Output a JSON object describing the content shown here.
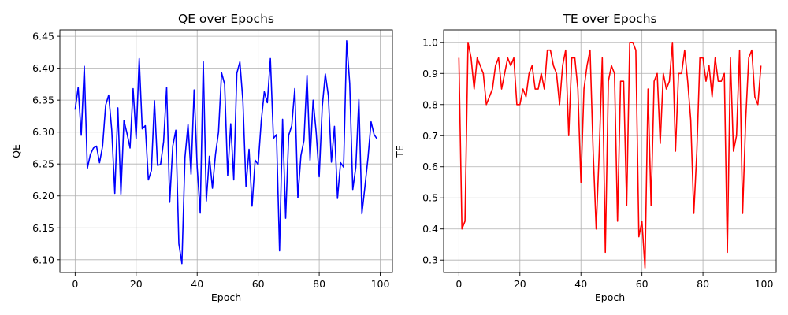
{
  "chart_data": [
    {
      "type": "line",
      "title": "QE over Epochs",
      "xlabel": "Epoch",
      "ylabel": "QE",
      "xlim": [
        -5,
        104
      ],
      "ylim": [
        6.08,
        6.46
      ],
      "xticks": [
        0,
        20,
        40,
        60,
        80,
        100
      ],
      "yticks": [
        6.1,
        6.15,
        6.2,
        6.25,
        6.3,
        6.35,
        6.4,
        6.45
      ],
      "ytick_decimals": 2,
      "grid": true,
      "series": [
        {
          "color": "#0000ff",
          "x": [
            0,
            1,
            2,
            3,
            4,
            5,
            6,
            7,
            8,
            9,
            10,
            11,
            12,
            13,
            14,
            15,
            16,
            17,
            18,
            19,
            20,
            21,
            22,
            23,
            24,
            25,
            26,
            27,
            28,
            29,
            30,
            31,
            32,
            33,
            34,
            35,
            36,
            37,
            38,
            39,
            40,
            41,
            42,
            43,
            44,
            45,
            46,
            47,
            48,
            49,
            50,
            51,
            52,
            53,
            54,
            55,
            56,
            57,
            58,
            59,
            60,
            61,
            62,
            63,
            64,
            65,
            66,
            67,
            68,
            69,
            70,
            71,
            72,
            73,
            74,
            75,
            76,
            77,
            78,
            79,
            80,
            81,
            82,
            83,
            84,
            85,
            86,
            87,
            88,
            89,
            90,
            91,
            92,
            93,
            94,
            95,
            96,
            97,
            98,
            99
          ],
          "y": [
            6.335,
            6.37,
            6.295,
            6.403,
            6.243,
            6.265,
            6.275,
            6.278,
            6.252,
            6.278,
            6.342,
            6.358,
            6.303,
            6.204,
            6.338,
            6.203,
            6.318,
            6.298,
            6.275,
            6.368,
            6.29,
            6.415,
            6.305,
            6.31,
            6.225,
            6.24,
            6.349,
            6.248,
            6.249,
            6.285,
            6.37,
            6.19,
            6.278,
            6.303,
            6.125,
            6.094,
            6.26,
            6.312,
            6.234,
            6.366,
            6.245,
            6.173,
            6.41,
            6.192,
            6.262,
            6.212,
            6.265,
            6.3,
            6.393,
            6.375,
            6.232,
            6.313,
            6.225,
            6.392,
            6.41,
            6.348,
            6.215,
            6.273,
            6.184,
            6.256,
            6.249,
            6.317,
            6.363,
            6.346,
            6.415,
            6.29,
            6.296,
            6.114,
            6.32,
            6.165,
            6.295,
            6.31,
            6.368,
            6.197,
            6.263,
            6.287,
            6.389,
            6.256,
            6.35,
            6.3,
            6.23,
            6.34,
            6.391,
            6.357,
            6.253,
            6.309,
            6.196,
            6.252,
            6.245,
            6.443,
            6.376,
            6.21,
            6.245,
            6.351,
            6.172,
            6.215,
            6.26,
            6.316,
            6.296,
            6.289
          ]
        }
      ]
    },
    {
      "type": "line",
      "title": "TE over Epochs",
      "xlabel": "Epoch",
      "ylabel": "TE",
      "xlim": [
        -5,
        104
      ],
      "ylim": [
        0.26,
        1.04
      ],
      "xticks": [
        0,
        20,
        40,
        60,
        80,
        100
      ],
      "yticks": [
        0.3,
        0.4,
        0.5,
        0.6,
        0.7,
        0.8,
        0.9,
        1.0
      ],
      "ytick_decimals": 1,
      "grid": true,
      "series": [
        {
          "color": "#ff0000",
          "x": [
            0,
            1,
            2,
            3,
            4,
            5,
            6,
            7,
            8,
            9,
            10,
            11,
            12,
            13,
            14,
            15,
            16,
            17,
            18,
            19,
            20,
            21,
            22,
            23,
            24,
            25,
            26,
            27,
            28,
            29,
            30,
            31,
            32,
            33,
            34,
            35,
            36,
            37,
            38,
            39,
            40,
            41,
            42,
            43,
            44,
            45,
            46,
            47,
            48,
            49,
            50,
            51,
            52,
            53,
            54,
            55,
            56,
            57,
            58,
            59,
            60,
            61,
            62,
            63,
            64,
            65,
            66,
            67,
            68,
            69,
            70,
            71,
            72,
            73,
            74,
            75,
            76,
            77,
            78,
            79,
            80,
            81,
            82,
            83,
            84,
            85,
            86,
            87,
            88,
            89,
            90,
            91,
            92,
            93,
            94,
            95,
            96,
            97,
            98,
            99
          ],
          "y": [
            0.95,
            0.4,
            0.425,
            1.0,
            0.95,
            0.85,
            0.95,
            0.925,
            0.9,
            0.8,
            0.825,
            0.85,
            0.925,
            0.95,
            0.85,
            0.9,
            0.95,
            0.925,
            0.95,
            0.8,
            0.8,
            0.85,
            0.825,
            0.9,
            0.925,
            0.85,
            0.85,
            0.9,
            0.85,
            0.975,
            0.975,
            0.925,
            0.9,
            0.8,
            0.925,
            0.975,
            0.7,
            0.95,
            0.95,
            0.85,
            0.55,
            0.85,
            0.925,
            0.975,
            0.65,
            0.4,
            0.65,
            0.95,
            0.325,
            0.875,
            0.925,
            0.9,
            0.425,
            0.875,
            0.875,
            0.475,
            1.0,
            1.0,
            0.975,
            0.375,
            0.425,
            0.275,
            0.85,
            0.475,
            0.875,
            0.9,
            0.675,
            0.9,
            0.85,
            0.875,
            1.0,
            0.65,
            0.9,
            0.9,
            0.975,
            0.875,
            0.75,
            0.45,
            0.65,
            0.95,
            0.95,
            0.875,
            0.925,
            0.825,
            0.95,
            0.875,
            0.875,
            0.9,
            0.325,
            0.95,
            0.65,
            0.7,
            0.975,
            0.45,
            0.75,
            0.95,
            0.975,
            0.825,
            0.8,
            0.925
          ]
        }
      ]
    }
  ]
}
